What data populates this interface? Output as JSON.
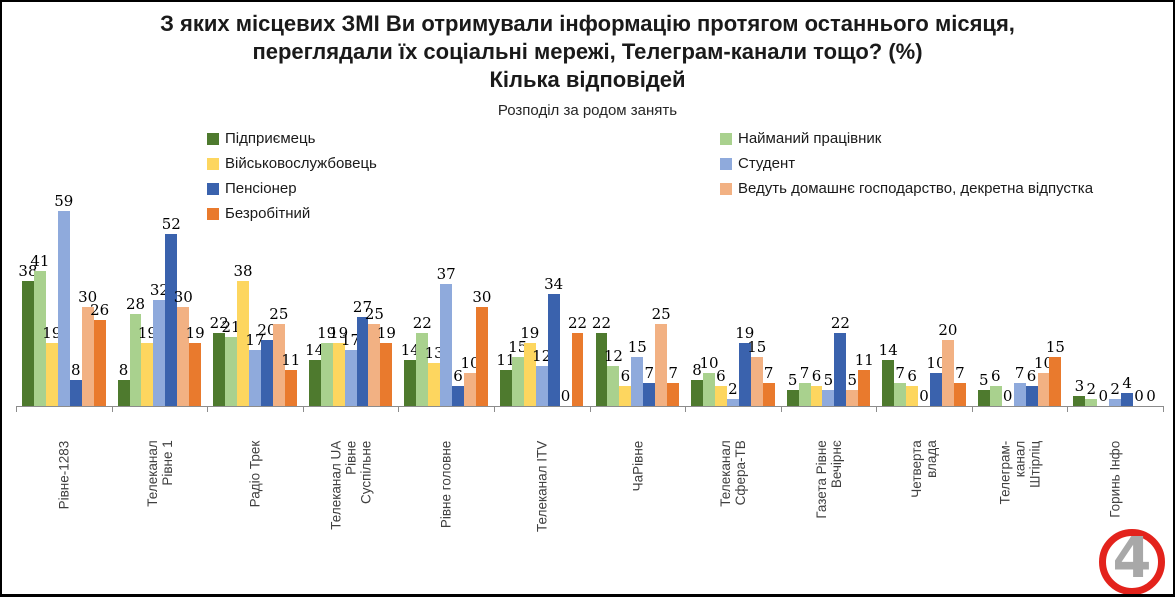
{
  "title": {
    "line1": "З яких місцевих ЗМІ Ви отримували інформацію протягом останнього місяця,",
    "line2": "переглядали їх соціальні мережі, Телеграм-канали тощо? (%)",
    "line3": "Кілька відповідей",
    "subtitle": "Розподіл за родом занять"
  },
  "legend": {
    "left": [
      {
        "label": "Підприємець",
        "color": "#4e7a2e"
      },
      {
        "label": "Військовослужбовець",
        "color": "#fdd65f"
      },
      {
        "label": "Пенсіонер",
        "color": "#3a62ad"
      },
      {
        "label": "Безробітний",
        "color": "#e97a2d"
      }
    ],
    "right": [
      {
        "label": "Найманий працівник",
        "color": "#a9d18e"
      },
      {
        "label": "Студент",
        "color": "#8faadc"
      },
      {
        "label": "Ведуть домашнє господарство, декретна відпустка",
        "color": "#f2b183"
      }
    ]
  },
  "chart_data": {
    "type": "bar",
    "title": "З яких місцевих ЗМІ Ви отримували інформацію протягом останнього місяця, переглядали їх соціальні мережі, Телеграм-канали тощо? (%) Кілька відповідей",
    "subtitle": "Розподіл за родом занять",
    "xlabel": "",
    "ylabel": "",
    "ylim": [
      0,
      62
    ],
    "grid": false,
    "legend_position": "top",
    "data_labels": true,
    "categories": [
      "Рівне-1283",
      "Телеканал Рівне 1",
      "Радіо Трек",
      "Телеканал UA\nРівне Суспільне",
      "Рівне головне",
      "Телеканал ITV",
      "ЧаРівне",
      "Телеканал\nСфера-ТВ",
      "Газета Рівне\nВечірнє",
      "Четверта влада",
      "Телеграм-канал\nШтірліц",
      "Горинь Інфо"
    ],
    "series": [
      {
        "name": "Підприємець",
        "color": "#4e7a2e",
        "values": [
          38,
          8,
          22,
          14,
          14,
          11,
          22,
          8,
          5,
          14,
          5,
          3
        ]
      },
      {
        "name": "Найманий працівник",
        "color": "#a9d18e",
        "values": [
          41,
          28,
          21,
          19,
          22,
          15,
          12,
          10,
          7,
          7,
          6,
          2
        ]
      },
      {
        "name": "Військовослужбовець",
        "color": "#fdd65f",
        "values": [
          19,
          19,
          38,
          19,
          13,
          19,
          6,
          6,
          6,
          6,
          0,
          0
        ]
      },
      {
        "name": "Студент",
        "color": "#8faadc",
        "values": [
          59,
          32,
          17,
          17,
          37,
          12,
          15,
          2,
          5,
          0,
          7,
          2
        ]
      },
      {
        "name": "Пенсіонер",
        "color": "#3a62ad",
        "values": [
          8,
          52,
          20,
          27,
          6,
          34,
          7,
          19,
          22,
          10,
          6,
          4
        ]
      },
      {
        "name": "Ведуть домашнє господарство, декретна відпустка",
        "color": "#f2b183",
        "values": [
          30,
          30,
          25,
          25,
          10,
          0,
          25,
          15,
          5,
          20,
          10,
          0
        ]
      },
      {
        "name": "Безробітний",
        "color": "#e97a2d",
        "values": [
          26,
          19,
          11,
          19,
          30,
          22,
          7,
          7,
          11,
          7,
          15,
          0
        ]
      }
    ]
  },
  "logo": {
    "digit": "4",
    "ring_color": "#e3231c",
    "digit_color": "#a8a8a8"
  }
}
